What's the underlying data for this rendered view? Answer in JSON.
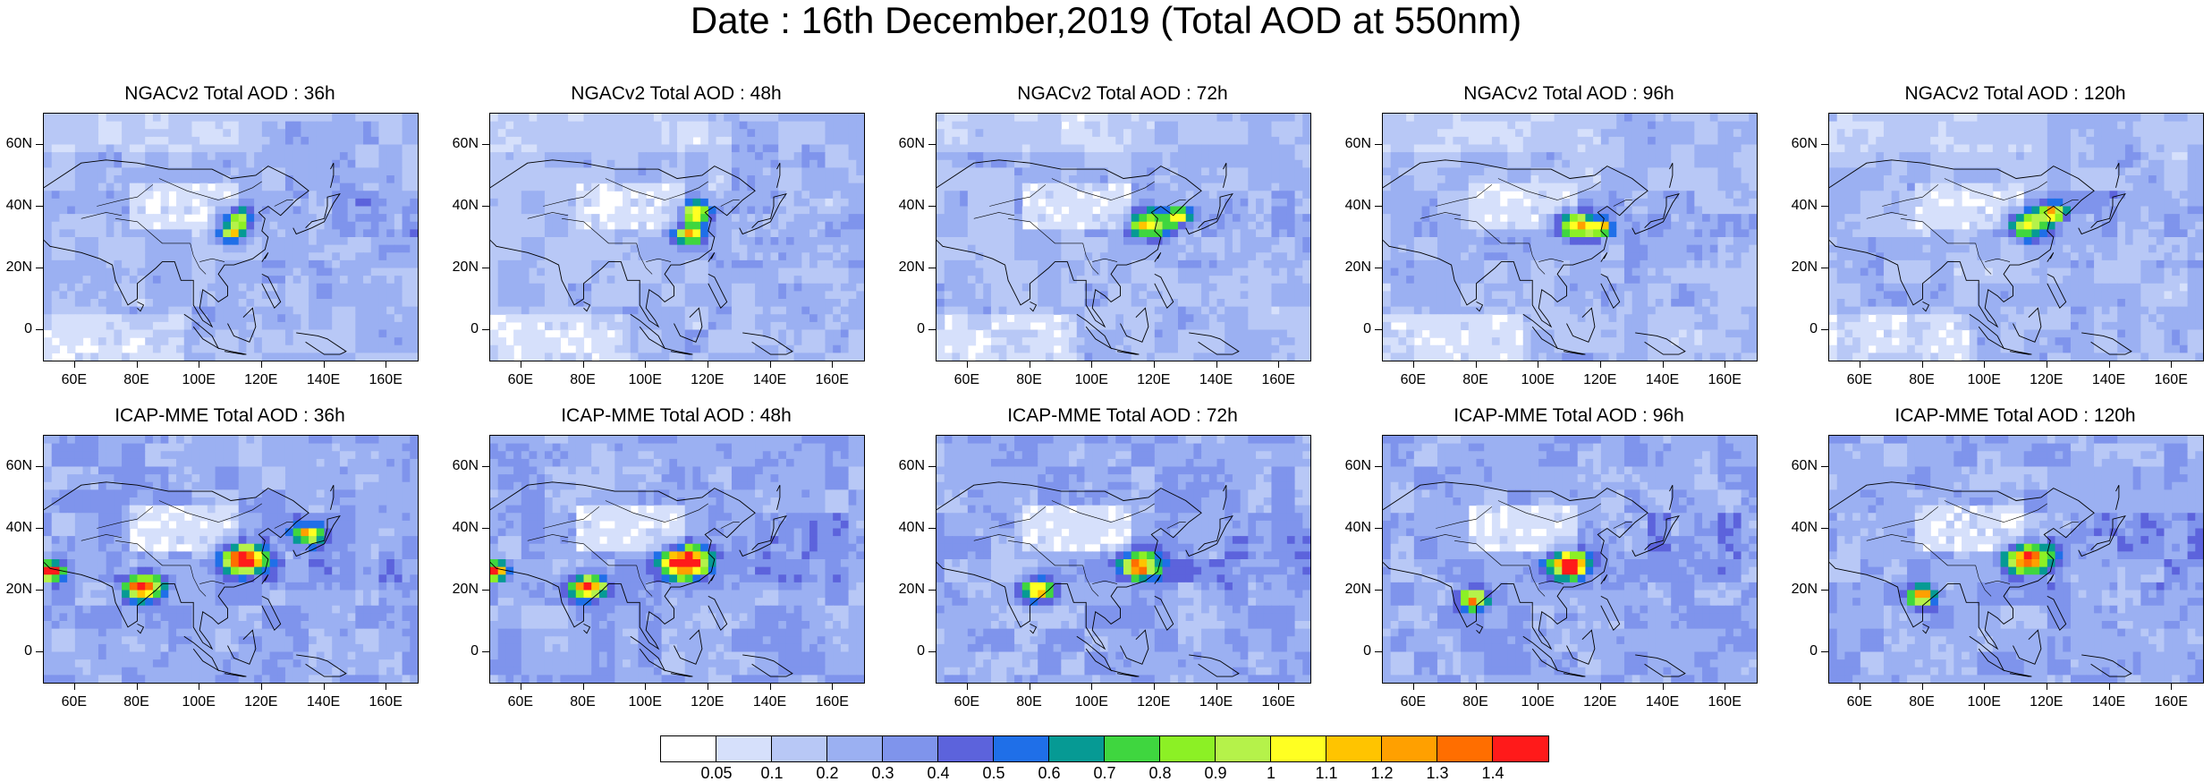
{
  "title": "Date : 16th December,2019 (Total AOD at 550nm)",
  "panels": [
    {
      "title": "NGACv2 Total AOD : 36h",
      "model": "NGACv2",
      "lead": "36h",
      "hotspots": [
        {
          "lon": 112,
          "lat": 36,
          "level": 0.8,
          "extent": 0.7
        },
        {
          "lon": 110,
          "lat": 31,
          "level": 0.8,
          "extent": 0.6
        }
      ]
    },
    {
      "title": "NGACv2 Total AOD : 48h",
      "model": "NGACv2",
      "lead": "48h",
      "hotspots": [
        {
          "lon": 116,
          "lat": 38,
          "level": 0.9,
          "extent": 0.7
        },
        {
          "lon": 114,
          "lat": 31,
          "level": 0.9,
          "extent": 0.7
        }
      ]
    },
    {
      "title": "NGACv2 Total AOD : 72h",
      "model": "NGACv2",
      "lead": "72h",
      "hotspots": [
        {
          "lon": 118,
          "lat": 34,
          "level": 0.9,
          "extent": 1.0
        },
        {
          "lon": 128,
          "lat": 37,
          "level": 0.8,
          "extent": 0.6
        }
      ]
    },
    {
      "title": "NGACv2 Total AOD : 96h",
      "model": "NGACv2",
      "lead": "96h",
      "hotspots": [
        {
          "lon": 112,
          "lat": 34,
          "level": 1.1,
          "extent": 0.9
        },
        {
          "lon": 120,
          "lat": 33,
          "level": 0.8,
          "extent": 0.6
        }
      ]
    },
    {
      "title": "NGACv2 Total AOD : 120h",
      "model": "NGACv2",
      "lead": "120h",
      "hotspots": [
        {
          "lon": 114,
          "lat": 34,
          "level": 1.0,
          "extent": 1.0
        },
        {
          "lon": 122,
          "lat": 38,
          "level": 0.8,
          "extent": 0.6
        }
      ]
    },
    {
      "title": "ICAP-MME Total AOD : 36h",
      "model": "ICAP-MME",
      "lead": "36h",
      "hotspots": [
        {
          "lon": 114,
          "lat": 30,
          "level": 1.4,
          "extent": 1.1
        },
        {
          "lon": 82,
          "lat": 21,
          "level": 1.2,
          "extent": 0.9
        },
        {
          "lon": 135,
          "lat": 38,
          "level": 0.8,
          "extent": 0.7
        },
        {
          "lon": 52,
          "lat": 26,
          "level": 1.3,
          "extent": 0.5
        }
      ]
    },
    {
      "title": "ICAP-MME Total AOD : 48h",
      "model": "ICAP-MME",
      "lead": "48h",
      "hotspots": [
        {
          "lon": 113,
          "lat": 29,
          "level": 1.4,
          "extent": 1.2
        },
        {
          "lon": 82,
          "lat": 21,
          "level": 1.1,
          "extent": 0.9
        },
        {
          "lon": 52,
          "lat": 26,
          "level": 1.3,
          "extent": 0.5
        }
      ]
    },
    {
      "title": "ICAP-MME Total AOD : 72h",
      "model": "ICAP-MME",
      "lead": "72h",
      "hotspots": [
        {
          "lon": 115,
          "lat": 28,
          "level": 1.0,
          "extent": 1.0
        },
        {
          "lon": 83,
          "lat": 20,
          "level": 0.9,
          "extent": 0.7
        }
      ]
    },
    {
      "title": "ICAP-MME Total AOD : 96h",
      "model": "ICAP-MME",
      "lead": "96h",
      "hotspots": [
        {
          "lon": 110,
          "lat": 28,
          "level": 1.3,
          "extent": 1.0
        },
        {
          "lon": 79,
          "lat": 17,
          "level": 1.0,
          "extent": 0.6
        }
      ]
    },
    {
      "title": "ICAP-MME Total AOD : 120h",
      "model": "ICAP-MME",
      "lead": "120h",
      "hotspots": [
        {
          "lon": 114,
          "lat": 30,
          "level": 1.2,
          "extent": 1.1
        },
        {
          "lon": 80,
          "lat": 18,
          "level": 1.0,
          "extent": 0.6
        }
      ]
    }
  ],
  "axes": {
    "lon_range": [
      50,
      170
    ],
    "lat_range": [
      -10,
      70
    ],
    "x_ticks": [
      "60E",
      "80E",
      "100E",
      "120E",
      "140E",
      "160E"
    ],
    "x_tick_values": [
      60,
      80,
      100,
      120,
      140,
      160
    ],
    "y_ticks": [
      "60N",
      "40N",
      "20N",
      "0"
    ],
    "y_tick_values": [
      60,
      40,
      20,
      0
    ]
  },
  "colorbar": {
    "labels": [
      "0.05",
      "0.1",
      "0.2",
      "0.3",
      "0.4",
      "0.5",
      "0.6",
      "0.7",
      "0.8",
      "0.9",
      "1",
      "1.1",
      "1.2",
      "1.3",
      "1.4"
    ],
    "colors": [
      "#ffffff",
      "#d6e0fb",
      "#b8c8f6",
      "#9bb0f2",
      "#7f94ec",
      "#5c63dc",
      "#1f6fe8",
      "#069a94",
      "#3fd63f",
      "#8cf025",
      "#b5f24a",
      "#ffff22",
      "#ffc400",
      "#ffa000",
      "#ff6e00",
      "#ff1a1a"
    ]
  }
}
